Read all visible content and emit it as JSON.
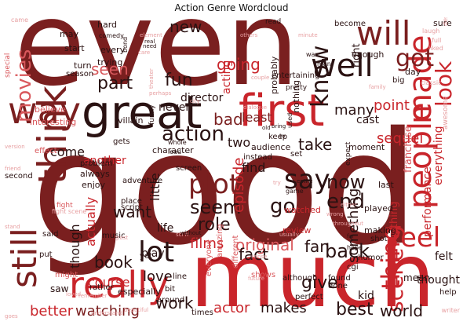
{
  "title": "Action Genre Wordcloud",
  "palette": {
    "dark_red": "#7a1f1f",
    "near_black": "#2a1212",
    "red": "#c9252b",
    "light_red": "#d9585c",
    "pale_red": "#e7a0a2"
  },
  "words": [
    {
      "text": "even",
      "color": "dark_red"
    },
    {
      "text": "good",
      "color": "dark_red"
    },
    {
      "text": "much",
      "color": "red"
    },
    {
      "text": "great",
      "color": "near_black"
    },
    {
      "text": "first",
      "color": "red"
    },
    {
      "text": "think",
      "color": "dark_red"
    },
    {
      "text": "really",
      "color": "red"
    },
    {
      "text": "people",
      "color": "red"
    },
    {
      "text": "made",
      "color": "red"
    },
    {
      "text": "well",
      "color": "near_black"
    },
    {
      "text": "will",
      "color": "dark_red"
    },
    {
      "text": "way",
      "color": "dark_red"
    },
    {
      "text": "still",
      "color": "dark_red"
    },
    {
      "text": "action",
      "color": "near_black"
    },
    {
      "text": "say",
      "color": "near_black"
    },
    {
      "text": "lot",
      "color": "near_black"
    },
    {
      "text": "plot",
      "color": "dark_red"
    },
    {
      "text": "seem",
      "color": "near_black"
    },
    {
      "text": "role",
      "color": "near_black"
    },
    {
      "text": "feel",
      "color": "red"
    },
    {
      "text": "thing",
      "color": "red"
    },
    {
      "text": "scene",
      "color": "red"
    },
    {
      "text": "got",
      "color": "dark_red"
    },
    {
      "text": "look",
      "color": "red"
    },
    {
      "text": "movies",
      "color": "light_red"
    },
    {
      "text": "know",
      "color": "near_black"
    },
    {
      "text": "go",
      "color": "near_black"
    },
    {
      "text": "end",
      "color": "near_black"
    },
    {
      "text": "now",
      "color": "near_black"
    },
    {
      "text": "fun",
      "color": "near_black"
    },
    {
      "text": "part",
      "color": "near_black"
    },
    {
      "text": "new",
      "color": "near_black"
    },
    {
      "text": "seen",
      "color": "light_red"
    },
    {
      "text": "bad",
      "color": "dark_red"
    },
    {
      "text": "going",
      "color": "red"
    },
    {
      "text": "want",
      "color": "near_black"
    },
    {
      "text": "take",
      "color": "near_black"
    },
    {
      "text": "back",
      "color": "near_black"
    },
    {
      "text": "give",
      "color": "near_black"
    },
    {
      "text": "best",
      "color": "near_black"
    },
    {
      "text": "world",
      "color": "near_black"
    },
    {
      "text": "work",
      "color": "near_black"
    },
    {
      "text": "actor",
      "color": "red"
    },
    {
      "text": "makes",
      "color": "near_black"
    },
    {
      "text": "better",
      "color": "red"
    },
    {
      "text": "watching",
      "color": "dark_red"
    },
    {
      "text": "love",
      "color": "near_black"
    },
    {
      "text": "films",
      "color": "red"
    },
    {
      "text": "original",
      "color": "light_red"
    },
    {
      "text": "fan",
      "color": "near_black"
    },
    {
      "text": "fact",
      "color": "near_black"
    },
    {
      "text": "episode",
      "color": "red"
    },
    {
      "text": "something",
      "color": "near_black"
    },
    {
      "text": "book",
      "color": "near_black"
    },
    {
      "text": "course",
      "color": "red"
    },
    {
      "text": "come",
      "color": "near_black"
    },
    {
      "text": "though",
      "color": "near_black"
    },
    {
      "text": "actually",
      "color": "red"
    },
    {
      "text": "many",
      "color": "near_black"
    },
    {
      "text": "point",
      "color": "red"
    },
    {
      "text": "sequel",
      "color": "red"
    },
    {
      "text": "director",
      "color": "near_black"
    },
    {
      "text": "never",
      "color": "near_black"
    },
    {
      "text": "acting",
      "color": "red"
    },
    {
      "text": "two",
      "color": "near_black"
    },
    {
      "text": "least",
      "color": "dark_red"
    },
    {
      "text": "find",
      "color": "near_black"
    },
    {
      "text": "another",
      "color": "red"
    },
    {
      "text": "little",
      "color": "near_black"
    },
    {
      "text": "life",
      "color": "near_black"
    },
    {
      "text": "play",
      "color": "near_black"
    },
    {
      "text": "cast",
      "color": "near_black"
    },
    {
      "text": "everything",
      "color": "red"
    },
    {
      "text": "performance",
      "color": "red"
    },
    {
      "text": "franchise",
      "color": "light_red"
    },
    {
      "text": "anything",
      "color": "red"
    },
    {
      "text": "thought",
      "color": "near_black"
    },
    {
      "text": "mean",
      "color": "near_black"
    },
    {
      "text": "felt",
      "color": "near_black"
    },
    {
      "text": "kid",
      "color": "near_black"
    },
    {
      "text": "especially",
      "color": "near_black"
    },
    {
      "text": "character",
      "color": "near_black"
    },
    {
      "text": "probably",
      "color": "near_black"
    },
    {
      "text": "right",
      "color": "near_black"
    },
    {
      "text": "every",
      "color": "near_black"
    },
    {
      "text": "trying",
      "color": "near_black"
    },
    {
      "text": "villain",
      "color": "near_black"
    },
    {
      "text": "nothing",
      "color": "near_black"
    },
    {
      "text": "enough",
      "color": "near_black"
    },
    {
      "text": "moment",
      "color": "near_black"
    },
    {
      "text": "always",
      "color": "near_black"
    },
    {
      "text": "enjoy",
      "color": "near_black"
    },
    {
      "text": "adventure",
      "color": "near_black"
    },
    {
      "text": "watched",
      "color": "red"
    },
    {
      "text": "review",
      "color": "red"
    },
    {
      "text": "played",
      "color": "near_black"
    },
    {
      "text": "making",
      "color": "near_black"
    },
    {
      "text": "shot",
      "color": "near_black"
    },
    {
      "text": "last",
      "color": "near_black"
    },
    {
      "text": "audience",
      "color": "near_black"
    },
    {
      "text": "set",
      "color": "near_black"
    },
    {
      "text": "screen",
      "color": "near_black"
    },
    {
      "text": "music",
      "color": "near_black"
    },
    {
      "text": "problem",
      "color": "near_black"
    },
    {
      "text": "script",
      "color": "near_black"
    },
    {
      "text": "place",
      "color": "near_black"
    },
    {
      "text": "fight",
      "color": "light_red"
    },
    {
      "text": "amazing",
      "color": "light_red"
    },
    {
      "text": "different",
      "color": "light_red"
    },
    {
      "text": "everyone",
      "color": "light_red"
    },
    {
      "text": "shows",
      "color": "light_red"
    },
    {
      "text": "found",
      "color": "near_black"
    },
    {
      "text": "done",
      "color": "near_black"
    },
    {
      "text": "perfect",
      "color": "near_black"
    },
    {
      "text": "although",
      "color": "near_black"
    },
    {
      "text": "cgi",
      "color": "near_black"
    },
    {
      "text": "saw",
      "color": "near_black"
    },
    {
      "text": "might",
      "color": "light_red"
    },
    {
      "text": "rather",
      "color": "near_black"
    },
    {
      "text": "around",
      "color": "near_black"
    },
    {
      "text": "times",
      "color": "near_black"
    },
    {
      "text": "line",
      "color": "near_black"
    },
    {
      "text": "bit",
      "color": "near_black"
    },
    {
      "text": "yet",
      "color": "near_black"
    },
    {
      "text": "instead",
      "color": "near_black"
    },
    {
      "text": "interesting",
      "color": "light_red"
    },
    {
      "text": "believe",
      "color": "light_red"
    },
    {
      "text": "special",
      "color": "light_red"
    },
    {
      "text": "effect",
      "color": "light_red"
    },
    {
      "text": "hard",
      "color": "near_black"
    },
    {
      "text": "may",
      "color": "near_black"
    },
    {
      "text": "start",
      "color": "near_black"
    },
    {
      "text": "turn",
      "color": "near_black"
    },
    {
      "text": "season",
      "color": "near_black"
    },
    {
      "text": "comedy",
      "color": "near_black"
    },
    {
      "text": "read",
      "color": "near_black"
    },
    {
      "text": "keep",
      "color": "near_black"
    },
    {
      "text": "funny",
      "color": "near_black"
    },
    {
      "text": "gets",
      "color": "near_black"
    },
    {
      "text": "sure",
      "color": "near_black"
    },
    {
      "text": "become",
      "color": "near_black"
    },
    {
      "text": "classic",
      "color": "pale_red"
    },
    {
      "text": "day",
      "color": "near_black"
    },
    {
      "text": "big",
      "color": "near_black"
    },
    {
      "text": "help",
      "color": "near_black"
    },
    {
      "text": "second",
      "color": "near_black"
    },
    {
      "text": "said",
      "color": "near_black"
    },
    {
      "text": "put",
      "color": "near_black"
    },
    {
      "text": "humor",
      "color": "near_black"
    },
    {
      "text": "hope",
      "color": "near_black"
    },
    {
      "text": "fight scene",
      "color": "pale_red"
    },
    {
      "text": "entertaining",
      "color": "near_black"
    },
    {
      "text": "pretty",
      "color": "near_black"
    },
    {
      "text": "expect",
      "color": "near_black"
    },
    {
      "text": "awesome",
      "color": "pale_red"
    },
    {
      "text": "writer",
      "color": "pale_red"
    },
    {
      "text": "war",
      "color": "near_black"
    },
    {
      "text": "man",
      "color": "near_black"
    },
    {
      "text": "liked",
      "color": "pale_red"
    },
    {
      "text": "full",
      "color": "pale_red"
    },
    {
      "text": "laugh",
      "color": "pale_red"
    },
    {
      "text": "despite",
      "color": "pale_red"
    },
    {
      "text": "came",
      "color": "pale_red"
    },
    {
      "text": "element",
      "color": "pale_red"
    },
    {
      "text": "others",
      "color": "pale_red"
    },
    {
      "text": "minute",
      "color": "pale_red"
    },
    {
      "text": "theater",
      "color": "pale_red"
    },
    {
      "text": "future",
      "color": "pale_red"
    },
    {
      "text": "sense",
      "color": "pale_red"
    },
    {
      "text": "loved",
      "color": "pale_red"
    },
    {
      "text": "friend",
      "color": "pale_red"
    },
    {
      "text": "version",
      "color": "pale_red"
    },
    {
      "text": "stand",
      "color": "pale_red"
    },
    {
      "text": "goes",
      "color": "pale_red"
    },
    {
      "text": "understand",
      "color": "pale_red"
    },
    {
      "text": "remember",
      "color": "pale_red"
    },
    {
      "text": "beautiful",
      "color": "pale_red"
    },
    {
      "text": "family",
      "color": "pale_red"
    },
    {
      "text": "city",
      "color": "pale_red"
    },
    {
      "text": "either",
      "color": "pale_red"
    },
    {
      "text": "dialogue",
      "color": "pale_red"
    },
    {
      "text": "couple",
      "color": "pale_red"
    },
    {
      "text": "wrong",
      "color": "pale_red"
    },
    {
      "text": "usually",
      "color": "pale_red"
    },
    {
      "text": "throughout",
      "color": "pale_red"
    },
    {
      "text": "sci fi",
      "color": "pale_red"
    },
    {
      "text": "past",
      "color": "pale_red"
    },
    {
      "text": "without",
      "color": "near_black"
    },
    {
      "text": "whole",
      "color": "near_black"
    },
    {
      "text": "lead",
      "color": "near_black"
    },
    {
      "text": "try",
      "color": "pale_red"
    },
    {
      "text": "game",
      "color": "near_black"
    },
    {
      "text": "entire",
      "color": "near_black"
    },
    {
      "text": "used",
      "color": "near_black"
    },
    {
      "text": "tv",
      "color": "near_black"
    },
    {
      "text": "far",
      "color": "near_black"
    },
    {
      "text": "bring",
      "color": "near_black"
    },
    {
      "text": "old",
      "color": "near_black"
    },
    {
      "text": "need",
      "color": "near_black"
    },
    {
      "text": "care",
      "color": "pale_red"
    },
    {
      "text": "perhaps",
      "color": "pale_red"
    },
    {
      "text": "real",
      "color": "near_black"
    },
    {
      "text": "bond",
      "color": "near_black"
    }
  ]
}
